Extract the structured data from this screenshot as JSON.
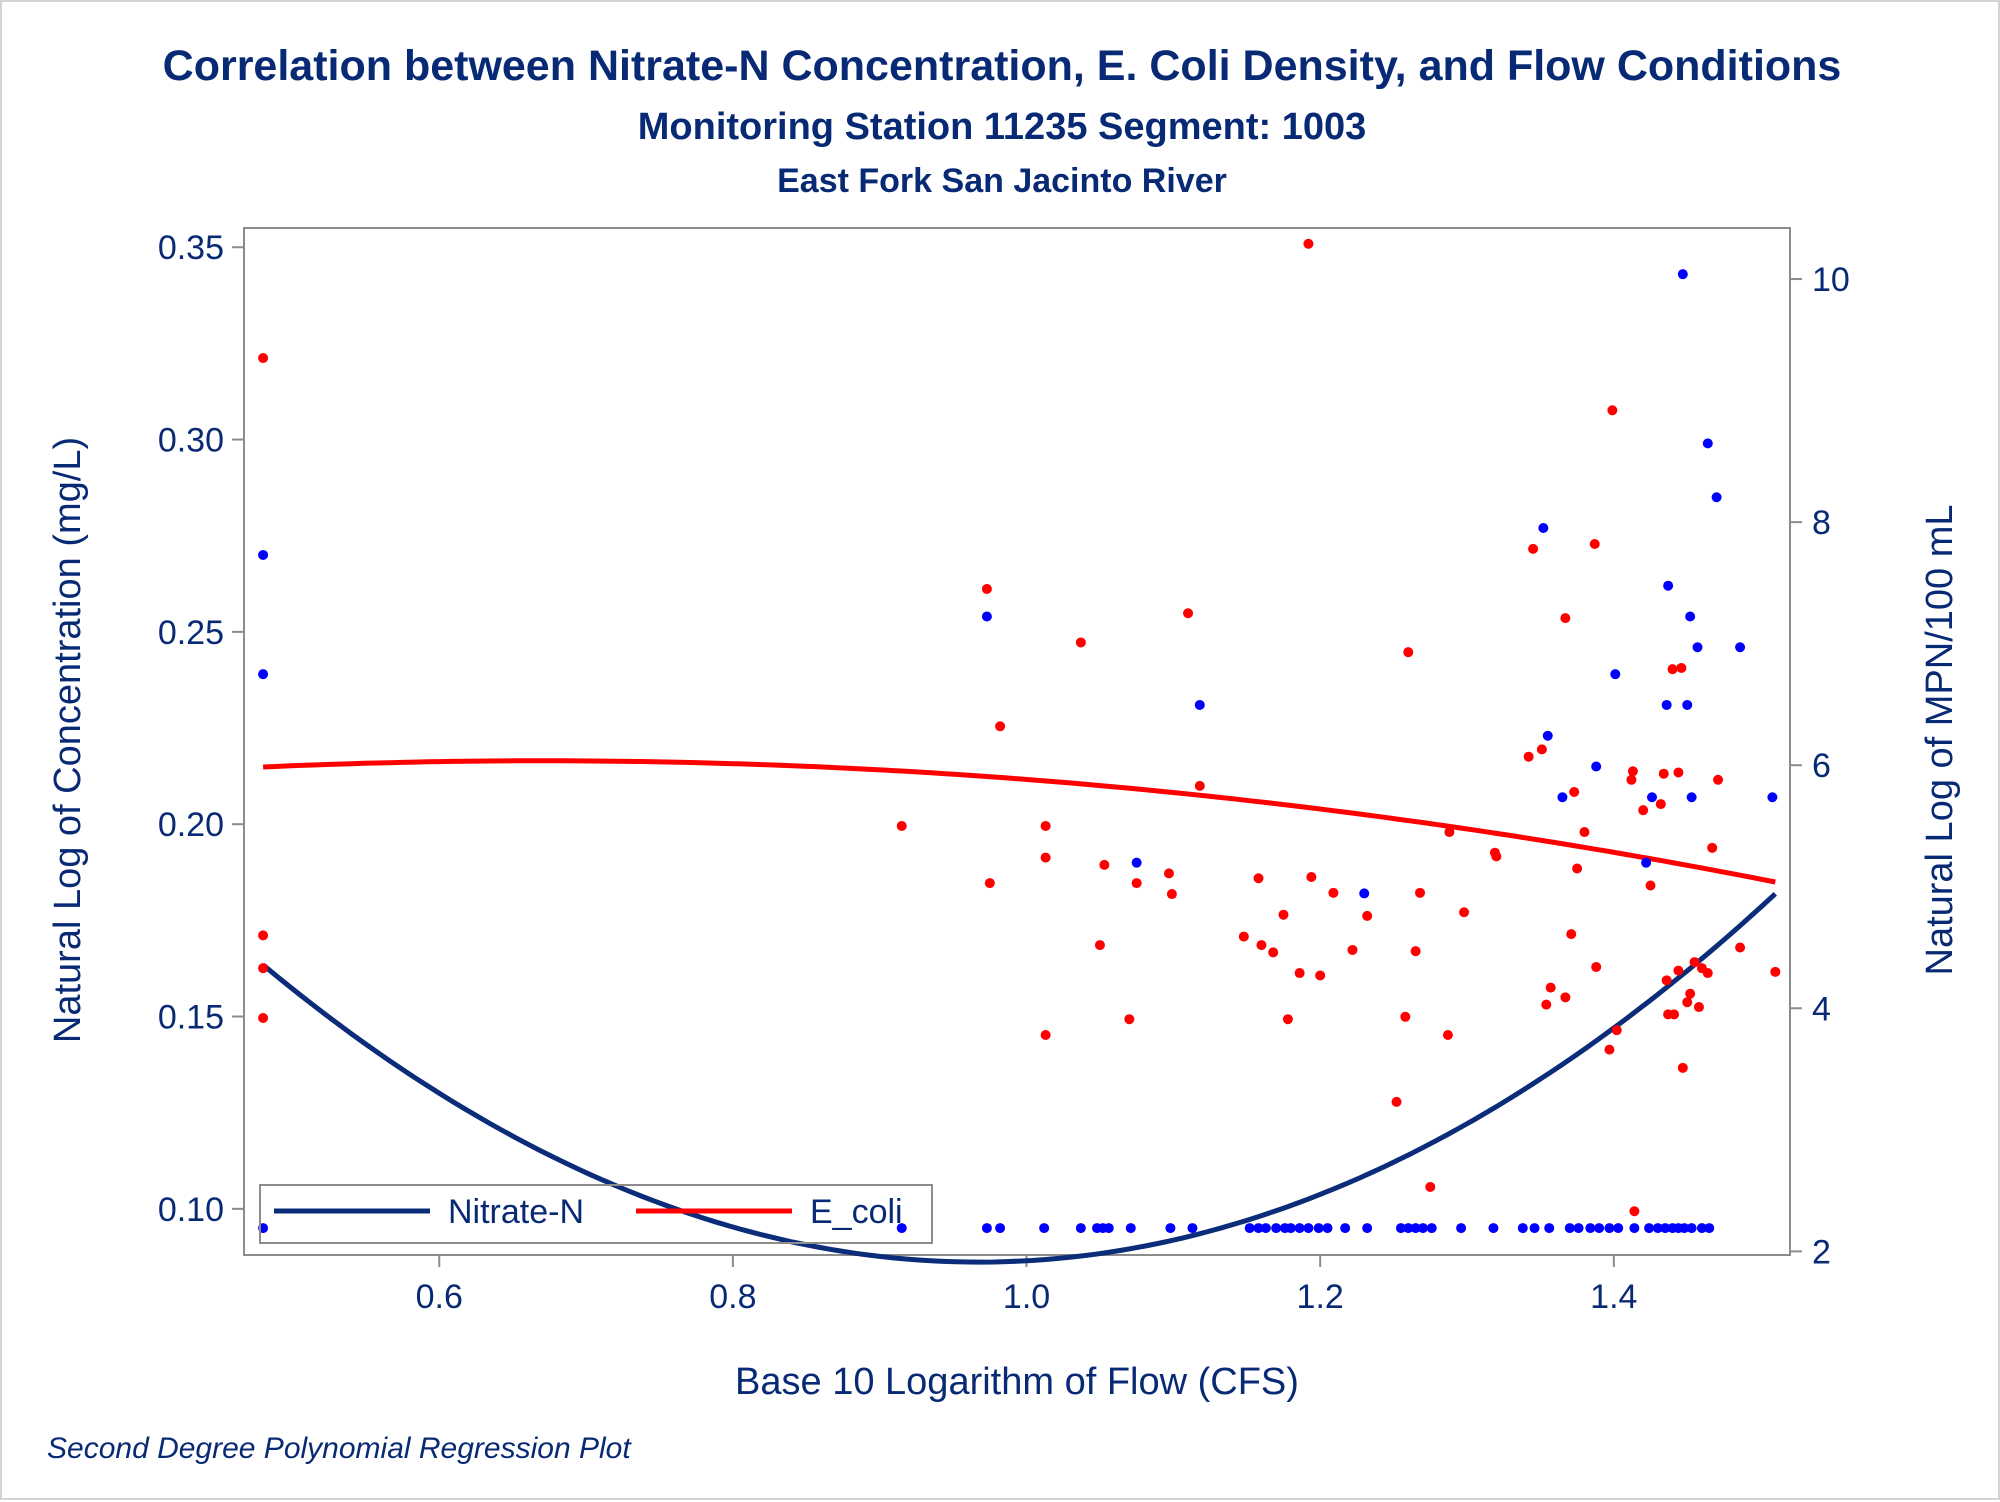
{
  "chart_data": {
    "type": "scatter",
    "title": "Correlation between Nitrate-N Concentration, E. Coli Density, and Flow Conditions",
    "subtitle": "Monitoring Station 11235 Segment: 1003",
    "subtitle2": "East Fork San Jacinto River",
    "xlabel": "Base 10 Logarithm of Flow (CFS)",
    "ylabel_left": "Natural Log of Concentration (mg/L)",
    "ylabel_right": "Natural Log of MPN/100 mL",
    "footnote": "Second Degree Polynomial Regression Plot",
    "xlim": [
      0.467,
      1.52
    ],
    "ylim_left": [
      0.088,
      0.355
    ],
    "ylim_right": [
      1.97,
      10.42
    ],
    "x_ticks": [
      "0.6",
      "0.8",
      "1.0",
      "1.2",
      "1.4"
    ],
    "y_left_ticks": [
      "0.10",
      "0.15",
      "0.20",
      "0.25",
      "0.30",
      "0.35"
    ],
    "y_right_ticks": [
      "2",
      "4",
      "6",
      "8",
      "10"
    ],
    "legend": {
      "placement": "bottom-left",
      "entries": [
        {
          "label": "Nitrate-N",
          "color": "#0b2c79"
        },
        {
          "label": "E_coli",
          "color": "#ff0000"
        }
      ]
    },
    "colors": {
      "nitrate_points": "#0000ff",
      "ecoli_points": "#ff0000",
      "nitrate_line": "#0b2c79",
      "ecoli_line": "#ff0000"
    },
    "series": [
      {
        "name": "Nitrate-N",
        "axis": "left",
        "marker_color": "#0000ff",
        "points": [
          [
            0.48,
            0.27
          ],
          [
            0.48,
            0.239
          ],
          [
            0.48,
            0.095
          ],
          [
            0.973,
            0.254
          ],
          [
            1.075,
            0.19
          ],
          [
            1.118,
            0.231
          ],
          [
            1.23,
            0.182
          ],
          [
            1.352,
            0.277
          ],
          [
            1.355,
            0.223
          ],
          [
            1.365,
            0.207
          ],
          [
            1.388,
            0.215
          ],
          [
            1.401,
            0.239
          ],
          [
            1.422,
            0.19
          ],
          [
            1.426,
            0.207
          ],
          [
            1.436,
            0.231
          ],
          [
            1.437,
            0.262
          ],
          [
            1.447,
            0.343
          ],
          [
            1.45,
            0.231
          ],
          [
            1.452,
            0.254
          ],
          [
            1.453,
            0.207
          ],
          [
            1.457,
            0.246
          ],
          [
            1.464,
            0.299
          ],
          [
            1.47,
            0.285
          ],
          [
            1.486,
            0.246
          ],
          [
            1.508,
            0.207
          ],
          [
            0.915,
            0.095
          ],
          [
            0.973,
            0.095
          ],
          [
            0.982,
            0.095
          ],
          [
            1.012,
            0.095
          ],
          [
            1.037,
            0.095
          ],
          [
            1.048,
            0.095
          ],
          [
            1.052,
            0.095
          ],
          [
            1.056,
            0.095
          ],
          [
            1.071,
            0.095
          ],
          [
            1.098,
            0.095
          ],
          [
            1.113,
            0.095
          ],
          [
            1.152,
            0.095
          ],
          [
            1.158,
            0.095
          ],
          [
            1.163,
            0.095
          ],
          [
            1.17,
            0.095
          ],
          [
            1.176,
            0.095
          ],
          [
            1.18,
            0.095
          ],
          [
            1.186,
            0.095
          ],
          [
            1.192,
            0.095
          ],
          [
            1.199,
            0.095
          ],
          [
            1.205,
            0.095
          ],
          [
            1.217,
            0.095
          ],
          [
            1.232,
            0.095
          ],
          [
            1.255,
            0.095
          ],
          [
            1.26,
            0.095
          ],
          [
            1.265,
            0.095
          ],
          [
            1.27,
            0.095
          ],
          [
            1.276,
            0.095
          ],
          [
            1.296,
            0.095
          ],
          [
            1.318,
            0.095
          ],
          [
            1.338,
            0.095
          ],
          [
            1.346,
            0.095
          ],
          [
            1.356,
            0.095
          ],
          [
            1.37,
            0.095
          ],
          [
            1.376,
            0.095
          ],
          [
            1.384,
            0.095
          ],
          [
            1.39,
            0.095
          ],
          [
            1.397,
            0.095
          ],
          [
            1.403,
            0.095
          ],
          [
            1.414,
            0.095
          ],
          [
            1.424,
            0.095
          ],
          [
            1.43,
            0.095
          ],
          [
            1.435,
            0.095
          ],
          [
            1.44,
            0.095
          ],
          [
            1.444,
            0.095
          ],
          [
            1.448,
            0.095
          ],
          [
            1.453,
            0.095
          ],
          [
            1.46,
            0.095
          ],
          [
            1.465,
            0.095
          ]
        ],
        "fit": {
          "degree": 2,
          "coefficients": [
            0.3905,
            -0.6292,
            0.3252
          ]
        }
      },
      {
        "name": "E_coli",
        "axis": "right",
        "marker_color": "#ff0000",
        "points": [
          [
            0.48,
            9.35
          ],
          [
            0.48,
            4.6
          ],
          [
            0.48,
            4.33
          ],
          [
            0.48,
            3.92
          ],
          [
            0.915,
            5.5
          ],
          [
            0.973,
            7.45
          ],
          [
            0.975,
            5.03
          ],
          [
            0.982,
            6.32
          ],
          [
            1.013,
            3.78
          ],
          [
            1.013,
            5.5
          ],
          [
            1.013,
            5.24
          ],
          [
            1.037,
            7.01
          ],
          [
            1.05,
            4.52
          ],
          [
            1.053,
            5.18
          ],
          [
            1.07,
            3.91
          ],
          [
            1.075,
            5.03
          ],
          [
            1.097,
            5.11
          ],
          [
            1.099,
            4.94
          ],
          [
            1.11,
            7.25
          ],
          [
            1.118,
            5.83
          ],
          [
            1.148,
            4.59
          ],
          [
            1.158,
            5.07
          ],
          [
            1.16,
            4.52
          ],
          [
            1.168,
            4.46
          ],
          [
            1.175,
            4.77
          ],
          [
            1.178,
            3.91
          ],
          [
            1.186,
            4.29
          ],
          [
            1.192,
            10.29
          ],
          [
            1.194,
            5.08
          ],
          [
            1.2,
            4.27
          ],
          [
            1.209,
            4.95
          ],
          [
            1.222,
            4.48
          ],
          [
            1.232,
            4.76
          ],
          [
            1.252,
            3.23
          ],
          [
            1.258,
            3.93
          ],
          [
            1.26,
            6.93
          ],
          [
            1.265,
            4.47
          ],
          [
            1.268,
            4.95
          ],
          [
            1.275,
            2.53
          ],
          [
            1.287,
            3.78
          ],
          [
            1.288,
            5.45
          ],
          [
            1.298,
            4.79
          ],
          [
            1.319,
            5.28
          ],
          [
            1.32,
            5.25
          ],
          [
            1.342,
            6.07
          ],
          [
            1.345,
            7.78
          ],
          [
            1.351,
            6.13
          ],
          [
            1.354,
            4.03
          ],
          [
            1.357,
            4.17
          ],
          [
            1.367,
            4.09
          ],
          [
            1.367,
            7.21
          ],
          [
            1.371,
            4.61
          ],
          [
            1.373,
            5.78
          ],
          [
            1.375,
            5.15
          ],
          [
            1.38,
            5.45
          ],
          [
            1.387,
            7.82
          ],
          [
            1.388,
            4.34
          ],
          [
            1.397,
            3.66
          ],
          [
            1.399,
            8.92
          ],
          [
            1.402,
            3.82
          ],
          [
            1.412,
            5.88
          ],
          [
            1.413,
            5.95
          ],
          [
            1.414,
            2.33
          ],
          [
            1.42,
            5.63
          ],
          [
            1.425,
            5.01
          ],
          [
            1.432,
            5.68
          ],
          [
            1.434,
            5.93
          ],
          [
            1.436,
            4.23
          ],
          [
            1.437,
            3.95
          ],
          [
            1.44,
            6.79
          ],
          [
            1.441,
            3.95
          ],
          [
            1.444,
            4.31
          ],
          [
            1.444,
            5.94
          ],
          [
            1.446,
            6.8
          ],
          [
            1.447,
            3.51
          ],
          [
            1.45,
            4.05
          ],
          [
            1.452,
            4.12
          ],
          [
            1.455,
            4.38
          ],
          [
            1.458,
            4.01
          ],
          [
            1.46,
            4.33
          ],
          [
            1.464,
            4.29
          ],
          [
            1.467,
            5.32
          ],
          [
            1.471,
            5.88
          ],
          [
            1.486,
            4.5
          ],
          [
            1.51,
            4.3
          ]
        ],
        "fit": {
          "degree": 2,
          "coefficients": [
            5.4004,
            1.8975,
            -1.4152
          ]
        }
      }
    ]
  }
}
